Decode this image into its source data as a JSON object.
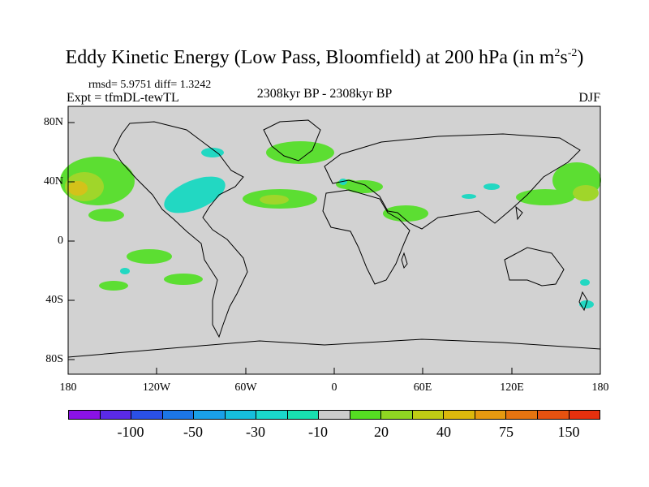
{
  "title": {
    "main": "Eddy Kinetic Energy (Low Pass, Bloomfield) at 200 hPa (in m",
    "sup1": "2",
    "mid": "s",
    "sup2": "-2",
    "end": ")"
  },
  "stats": "rmsd= 5.9751 diff= 1.3242",
  "expt": "Expt = tfmDL-tewTL",
  "period": "2308kyr BP - 2308kyr BP",
  "season": "DJF",
  "lat_labels": [
    "80N",
    "40N",
    "0",
    "40S",
    "80S"
  ],
  "lon_labels": [
    "180",
    "120W",
    "60W",
    "0",
    "60E",
    "120E",
    "180"
  ],
  "colorbar": {
    "colors": [
      "#8a12e6",
      "#5a2ae6",
      "#2a50e6",
      "#1c76e6",
      "#1aa0e8",
      "#16bedc",
      "#1ad8cc",
      "#18e0b0",
      "#cccccc",
      "#55dd22",
      "#90d622",
      "#c0cc14",
      "#dcb80c",
      "#e69a10",
      "#e67410",
      "#e65210",
      "#e6300e"
    ],
    "labels": [
      "-100",
      "-50",
      "-30",
      "-10",
      "20",
      "40",
      "75",
      "150"
    ]
  },
  "map_colors": {
    "land_ocean": "#d2d2d2",
    "positive_low": "#5cde32",
    "positive_mid": "#a0d62a",
    "positive_high": "#d4c21a",
    "negative_low": "#22d8c2"
  }
}
